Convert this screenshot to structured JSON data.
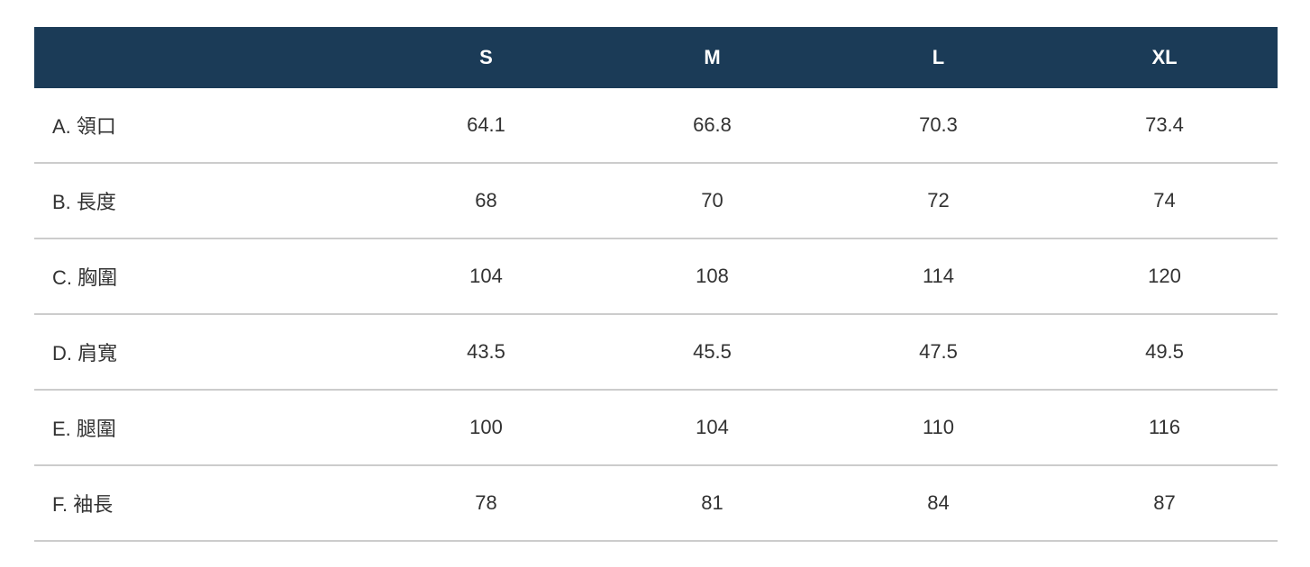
{
  "theme": {
    "header_bg": "#1b3b57",
    "header_text": "#ffffff",
    "body_text": "#323232",
    "divider": "#cccccc",
    "page_bg": "#ffffff"
  },
  "size_chart": {
    "columns": [
      "S",
      "M",
      "L",
      "XL"
    ],
    "rows": [
      {
        "label": "A. 領口",
        "values": [
          "64.1",
          "66.8",
          "70.3",
          "73.4"
        ]
      },
      {
        "label": "B. 長度",
        "values": [
          "68",
          "70",
          "72",
          "74"
        ]
      },
      {
        "label": "C. 胸圍",
        "values": [
          "104",
          "108",
          "114",
          "120"
        ]
      },
      {
        "label": "D. 肩寬",
        "values": [
          "43.5",
          "45.5",
          "47.5",
          "49.5"
        ]
      },
      {
        "label": "E. 腿圍",
        "values": [
          "100",
          "104",
          "110",
          "116"
        ]
      },
      {
        "label": "F. 袖長",
        "values": [
          "78",
          "81",
          "84",
          "87"
        ]
      }
    ]
  },
  "chart_data": {
    "type": "table",
    "title": "",
    "columns": [
      "",
      "S",
      "M",
      "L",
      "XL"
    ],
    "rows": [
      [
        "A. 領口",
        64.1,
        66.8,
        70.3,
        73.4
      ],
      [
        "B. 長度",
        68,
        70,
        72,
        74
      ],
      [
        "C. 胸圍",
        104,
        108,
        114,
        120
      ],
      [
        "D. 肩寬",
        43.5,
        45.5,
        47.5,
        49.5
      ],
      [
        "E. 腿圍",
        100,
        104,
        110,
        116
      ],
      [
        "F. 袖長",
        78,
        81,
        84,
        87
      ]
    ],
    "layout": {
      "header_background": "#1b3b57",
      "header_text_color": "#ffffff",
      "row_dividers": true,
      "label_alignment": "left",
      "value_alignment": "center"
    }
  }
}
